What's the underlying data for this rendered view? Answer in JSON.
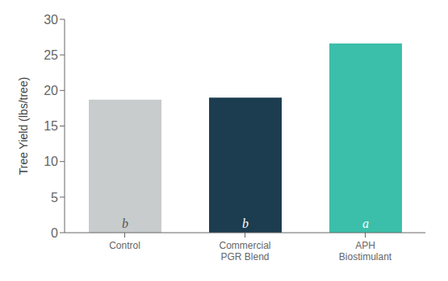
{
  "chart_data": {
    "type": "bar",
    "categories": [
      "Control",
      "Commercial\nPGR Blend",
      "APH\nBiostimulant"
    ],
    "values": [
      18.7,
      19.0,
      26.6
    ],
    "colors": [
      "#c8cccc",
      "#1b3d4f",
      "#3bbfaa"
    ],
    "annotations": [
      "b",
      "b",
      "a"
    ],
    "ylabel": "Tree Yield (lbs/tree)",
    "ylim": [
      0,
      30
    ],
    "yticks": [
      0,
      5,
      10,
      15,
      20,
      25,
      30
    ]
  }
}
